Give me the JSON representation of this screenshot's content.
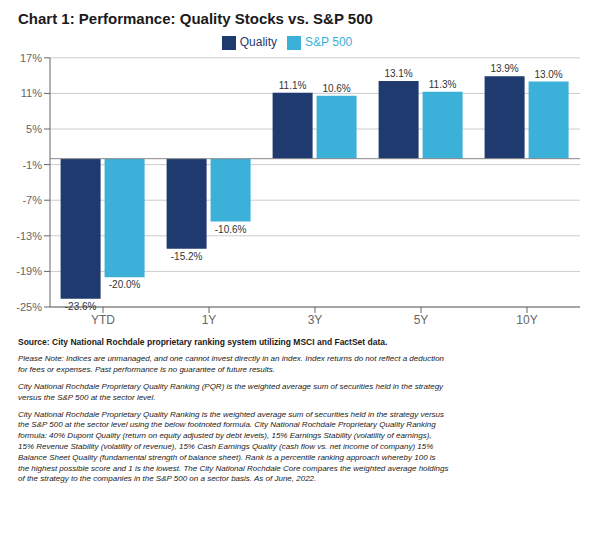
{
  "chart_data": {
    "type": "bar",
    "title": "Chart 1: Performance: Quality Stocks vs. S&P 500",
    "categories": [
      "YTD",
      "1Y",
      "3Y",
      "5Y",
      "10Y"
    ],
    "series": [
      {
        "name": "Quality",
        "color": "#1F3A6E",
        "values": [
          -23.6,
          -15.2,
          11.1,
          13.1,
          13.9
        ],
        "value_labels": [
          "-23.6%",
          "-15.2%",
          "11.1%",
          "13.1%",
          "13.9%"
        ]
      },
      {
        "name": "S&P 500",
        "color": "#3BB0D8",
        "values": [
          -20.0,
          -10.6,
          10.6,
          11.3,
          13.0
        ],
        "value_labels": [
          "-20.0%",
          "-10.6%",
          "10.6%",
          "11.3%",
          "13.0%"
        ]
      }
    ],
    "ylim": [
      -25,
      17
    ],
    "yticks": [
      {
        "value": -25,
        "label": "-25%"
      },
      {
        "value": -19,
        "label": "-19%"
      },
      {
        "value": -13,
        "label": "-13%"
      },
      {
        "value": -7,
        "label": "-7%"
      },
      {
        "value": -1,
        "label": "-1%"
      },
      {
        "value": 5,
        "label": "5%"
      },
      {
        "value": 11,
        "label": "11%"
      },
      {
        "value": 17,
        "label": "17%"
      }
    ],
    "grid": true,
    "legend": "top",
    "data_labels": true,
    "annotations": [
      "Source: City National Rochdale proprietary ranking system utilizing MSCI and FactSet data.",
      "Please Note: Indices are unmanaged, and one cannot invest directly in an index. Index returns do not reflect a deduction\nfor fees or expenses. Past performance is no guarantee of future results.",
      "City National Rochdale Proprietary Quality Ranking (PQR) is the weighted average sum of securities held in the strategy\nversus the S&P 500 at the sector level.",
      "City National Rochdale Proprietary Quality Ranking is the weighted average sum of securities held in the strategy versus\nthe S&P 500 at the sector level using the below footnoted formula. City National Rochdale Proprietary Quality Ranking\nformula: 40% Dupont Quality (return on equity adjusted by debt levels), 15% Earnings Stability (volatility of earnings),\n15% Revenue Stability (volatility of revenue), 15% Cash Earnings Quality (cash flow vs. net income of company) 15%\nBalance Sheet Quality (fundamental strength of balance sheet). Rank is a percentile ranking approach whereby 100 is\nthe highest possible score and 1 is the lowest. The City National Rochdale Core compares the weighted average holdings\nof the strategy to the companies in the S&P 500 on a sector basis. As of June, 2022."
    ]
  }
}
